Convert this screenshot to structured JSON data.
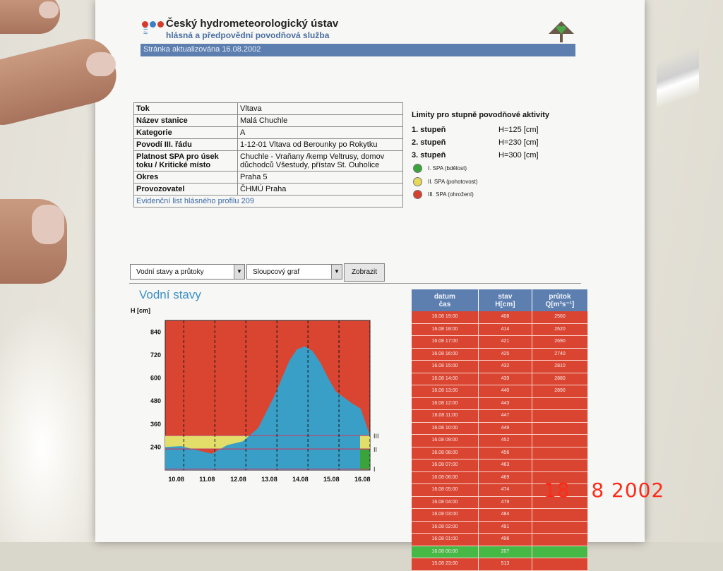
{
  "header": {
    "org_name": "Český hydrometeorologický ústav",
    "org_sub": "hlásná a předpovědní povodňová služba",
    "updated": "Stránka aktualizována   16.08.2002"
  },
  "info": [
    {
      "key": "Tok",
      "value": "Vltava"
    },
    {
      "key": "Název stanice",
      "value": "Malá Chuchle"
    },
    {
      "key": "Kategorie",
      "value": "A"
    },
    {
      "key": "Povodí III. řádu",
      "value": "1-12-01 Vltava od Berounky po Rokytku"
    },
    {
      "key": "Platnost SPA pro úsek toku / Kritické místo",
      "value": "Chuchle - Vraňany /kemp Veltrusy, domov důchodců Všestudy, přístav St. Ouholice"
    },
    {
      "key": "Okres",
      "value": "Praha 5"
    },
    {
      "key": "Provozovatel",
      "value": "ČHMÚ Praha"
    }
  ],
  "info_link": "Evidenční list hlásného profilu 209",
  "limits": {
    "title": "Limity pro stupně povodňové aktivity",
    "rows": [
      {
        "label": "1. stupeň",
        "value": "H=125 [cm]"
      },
      {
        "label": "2. stupeň",
        "value": "H=230 [cm]"
      },
      {
        "label": "3. stupeň",
        "value": "H=300 [cm]"
      }
    ]
  },
  "legend": [
    {
      "label": "I. SPA (bdělost)",
      "color": "#3aa33a"
    },
    {
      "label": "II. SPA (pohotovost)",
      "color": "#e6d95a"
    },
    {
      "label": "III. SPA (ohrožení)",
      "color": "#d64030"
    }
  ],
  "controls": {
    "select1": "Vodní stavy a průtoky",
    "select2": "Sloupcový graf",
    "button": "Zobrazit"
  },
  "chart_data": {
    "type": "area",
    "title": "Vodní stavy",
    "ylabel": "H [cm]",
    "yticks": [
      "840",
      "720",
      "600",
      "480",
      "360",
      "240"
    ],
    "ylim": [
      120,
      900
    ],
    "categories": [
      "10.08",
      "11.08",
      "12.08",
      "13.08",
      "14.08",
      "15.08",
      "16.08"
    ],
    "x": [
      0,
      0.5,
      1,
      1.5,
      2,
      2.5,
      3,
      3.5,
      4,
      4.25,
      4.5,
      4.75,
      5,
      5.25,
      5.5,
      6,
      6.3,
      6.6
    ],
    "values": [
      240,
      245,
      225,
      205,
      250,
      270,
      340,
      500,
      690,
      750,
      765,
      740,
      680,
      600,
      530,
      470,
      440,
      300
    ],
    "limit_labels": [
      "III",
      "II",
      "I"
    ],
    "limits": [
      300,
      230,
      125
    ],
    "colors": {
      "background": "#d94531",
      "water": "#3a9fc6",
      "yellow": "#e3de6a",
      "green": "#3aa33a",
      "line": "#c0406a"
    }
  },
  "table": {
    "headers": [
      {
        "l1": "datum",
        "l2": "čas"
      },
      {
        "l1": "stav",
        "l2": "H[cm]"
      },
      {
        "l1": "průtok",
        "l2": "Q[m³s⁻¹]"
      }
    ],
    "rows": [
      {
        "t": "16.08 19:00",
        "h": "408",
        "q": "2560"
      },
      {
        "t": "16.08 18:00",
        "h": "414",
        "q": "2620"
      },
      {
        "t": "16.08 17:00",
        "h": "421",
        "q": "2690"
      },
      {
        "t": "16.08 16:00",
        "h": "425",
        "q": "2740"
      },
      {
        "t": "16.08 15:00",
        "h": "432",
        "q": "2810"
      },
      {
        "t": "16.08 14:00",
        "h": "439",
        "q": "2880"
      },
      {
        "t": "16.08 13:00",
        "h": "440",
        "q": "2890"
      },
      {
        "t": "16.08 12:00",
        "h": "443",
        "q": ""
      },
      {
        "t": "16.08 11:00",
        "h": "447",
        "q": ""
      },
      {
        "t": "16.08 10:00",
        "h": "449",
        "q": ""
      },
      {
        "t": "16.08 09:00",
        "h": "452",
        "q": ""
      },
      {
        "t": "16.08 08:00",
        "h": "456",
        "q": ""
      },
      {
        "t": "16.08 07:00",
        "h": "463",
        "q": ""
      },
      {
        "t": "16.08 06:00",
        "h": "469",
        "q": ""
      },
      {
        "t": "16.08 05:00",
        "h": "474",
        "q": ""
      },
      {
        "t": "16.08 04:00",
        "h": "479",
        "q": ""
      },
      {
        "t": "16.08 03:00",
        "h": "484",
        "q": ""
      },
      {
        "t": "16.08 02:00",
        "h": "491",
        "q": ""
      },
      {
        "t": "16.08 01:00",
        "h": "496",
        "q": ""
      },
      {
        "t": "16.08 00:00",
        "h": "207",
        "q": "",
        "green": true
      },
      {
        "t": "15.08 23:00",
        "h": "513",
        "q": ""
      }
    ]
  },
  "stamp": "18   8 2002",
  "colors": {
    "row_red": "#d94531",
    "row_green": "#45b845",
    "header_blue": "#5d7fb0"
  }
}
